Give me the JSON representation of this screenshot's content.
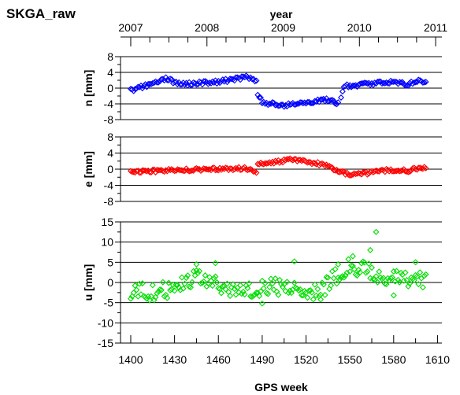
{
  "figure_title": "SKGA_raw",
  "chart_data": [
    {
      "type": "scatter",
      "name": "n",
      "title": "SKGA_raw",
      "xlabel": "GPS week",
      "x2label": "year",
      "ylabel": "n [mm]",
      "xlim": [
        1393,
        1613
      ],
      "ylim": [
        -8,
        8
      ],
      "yticks": [
        8,
        4,
        0,
        -4,
        -8
      ],
      "ytick_labels": [
        "8",
        "4",
        "0",
        "-4",
        "-8"
      ],
      "top_xticks": [
        2007,
        2008,
        2009,
        2010,
        2011
      ],
      "top_xtick_labels": [
        "2007",
        "2008",
        "2009",
        "2010",
        "2011"
      ],
      "color": "#0000ff",
      "grid": "horizontal",
      "segments": [
        {
          "x_start": 1400,
          "x_end": 1486,
          "anchors": [
            [
              1400,
              -0.6
            ],
            [
              1405,
              0.0
            ],
            [
              1410,
              0.6
            ],
            [
              1415,
              1.3
            ],
            [
              1420,
              2.0
            ],
            [
              1425,
              2.4
            ],
            [
              1430,
              1.5
            ],
            [
              1435,
              1.2
            ],
            [
              1440,
              1.1
            ],
            [
              1450,
              1.4
            ],
            [
              1460,
              1.6
            ],
            [
              1470,
              2.2
            ],
            [
              1478,
              2.8
            ],
            [
              1484,
              2.5
            ],
            [
              1486,
              1.6
            ]
          ]
        },
        {
          "x_start": 1487,
          "x_end": 1542,
          "anchors": [
            [
              1487,
              -1.8
            ],
            [
              1490,
              -3.4
            ],
            [
              1495,
              -4.0
            ],
            [
              1500,
              -4.1
            ],
            [
              1505,
              -4.4
            ],
            [
              1510,
              -4.0
            ],
            [
              1515,
              -3.8
            ],
            [
              1520,
              -3.8
            ],
            [
              1525,
              -3.4
            ],
            [
              1530,
              -3.2
            ],
            [
              1535,
              -3.0
            ],
            [
              1540,
              -3.7
            ],
            [
              1542,
              -4.0
            ]
          ]
        },
        {
          "x_start": 1544,
          "x_end": 1602,
          "anchors": [
            [
              1544,
              -2.2
            ],
            [
              1546,
              0.4
            ],
            [
              1550,
              0.6
            ],
            [
              1560,
              1.0
            ],
            [
              1570,
              1.4
            ],
            [
              1580,
              1.7
            ],
            [
              1585,
              1.1
            ],
            [
              1590,
              1.0
            ],
            [
              1595,
              1.8
            ],
            [
              1600,
              1.6
            ],
            [
              1602,
              1.7
            ]
          ]
        }
      ],
      "step": 1,
      "noise": 0.45
    },
    {
      "type": "scatter",
      "name": "e",
      "ylabel": "e [mm]",
      "xlim": [
        1393,
        1613
      ],
      "ylim": [
        -8,
        8
      ],
      "yticks": [
        8,
        4,
        0,
        -4,
        -8
      ],
      "ytick_labels": [
        "8",
        "4",
        "0",
        "-4",
        "-8"
      ],
      "color": "#ff0000",
      "grid": "horizontal",
      "segments": [
        {
          "x_start": 1400,
          "x_end": 1486,
          "anchors": [
            [
              1400,
              -0.6
            ],
            [
              1410,
              -0.5
            ],
            [
              1420,
              -0.4
            ],
            [
              1430,
              -0.3
            ],
            [
              1440,
              -0.2
            ],
            [
              1450,
              -0.1
            ],
            [
              1460,
              0.0
            ],
            [
              1470,
              0.1
            ],
            [
              1478,
              0.2
            ],
            [
              1483,
              -0.4
            ],
            [
              1486,
              -1.1
            ]
          ]
        },
        {
          "x_start": 1487,
          "x_end": 1602,
          "anchors": [
            [
              1487,
              1.4
            ],
            [
              1495,
              1.5
            ],
            [
              1500,
              1.8
            ],
            [
              1505,
              2.1
            ],
            [
              1510,
              2.4
            ],
            [
              1515,
              2.3
            ],
            [
              1520,
              1.9
            ],
            [
              1525,
              1.6
            ],
            [
              1530,
              1.2
            ],
            [
              1535,
              0.6
            ],
            [
              1540,
              -0.2
            ],
            [
              1545,
              -0.8
            ],
            [
              1550,
              -1.3
            ],
            [
              1555,
              -1.4
            ],
            [
              1560,
              -1.1
            ],
            [
              1565,
              -0.7
            ],
            [
              1570,
              -0.4
            ],
            [
              1580,
              -0.3
            ],
            [
              1590,
              -0.4
            ],
            [
              1595,
              0.1
            ],
            [
              1602,
              0.3
            ]
          ]
        }
      ],
      "step": 1,
      "noise": 0.4
    },
    {
      "type": "scatter",
      "name": "u",
      "ylabel": "u [mm]",
      "xlabel": "GPS week",
      "xlim": [
        1393,
        1613
      ],
      "ylim": [
        -15,
        15
      ],
      "yticks": [
        15,
        10,
        5,
        0,
        -5,
        -10,
        -15
      ],
      "ytick_labels": [
        "15",
        "10",
        "5",
        "0",
        "-5",
        "-10",
        "-15"
      ],
      "xticks": [
        1400,
        1430,
        1460,
        1490,
        1520,
        1550,
        1580,
        1610
      ],
      "xtick_labels": [
        "1400",
        "1430",
        "1460",
        "1490",
        "1520",
        "1550",
        "1580",
        "1610"
      ],
      "color": "#00dd00",
      "grid": "horizontal",
      "segments": [
        {
          "x_start": 1400,
          "x_end": 1602,
          "anchors": [
            [
              1400,
              -2.0
            ],
            [
              1410,
              -2.5
            ],
            [
              1420,
              -2.0
            ],
            [
              1430,
              -1.5
            ],
            [
              1440,
              1.0
            ],
            [
              1450,
              0.5
            ],
            [
              1460,
              -1.0
            ],
            [
              1470,
              -2.0
            ],
            [
              1480,
              -2.0
            ],
            [
              1490,
              -1.0
            ],
            [
              1500,
              -1.0
            ],
            [
              1510,
              -1.5
            ],
            [
              1520,
              -2.0
            ],
            [
              1530,
              -2.0
            ],
            [
              1540,
              1.5
            ],
            [
              1550,
              4.0
            ],
            [
              1560,
              3.0
            ],
            [
              1570,
              1.5
            ],
            [
              1580,
              1.0
            ],
            [
              1590,
              0.5
            ],
            [
              1602,
              0.5
            ]
          ]
        }
      ],
      "step": 1,
      "noise": 2.2,
      "extra_points": [
        [
          1568,
          12.5
        ],
        [
          1564,
          8.0
        ],
        [
          1542,
          4.5
        ],
        [
          1512,
          5.2
        ],
        [
          1490,
          -5.2
        ],
        [
          1445,
          4.5
        ],
        [
          1458,
          4.8
        ],
        [
          1595,
          5.0
        ],
        [
          1552,
          6.5
        ],
        [
          1580,
          -3.2
        ],
        [
          1530,
          -4.2
        ]
      ]
    }
  ]
}
